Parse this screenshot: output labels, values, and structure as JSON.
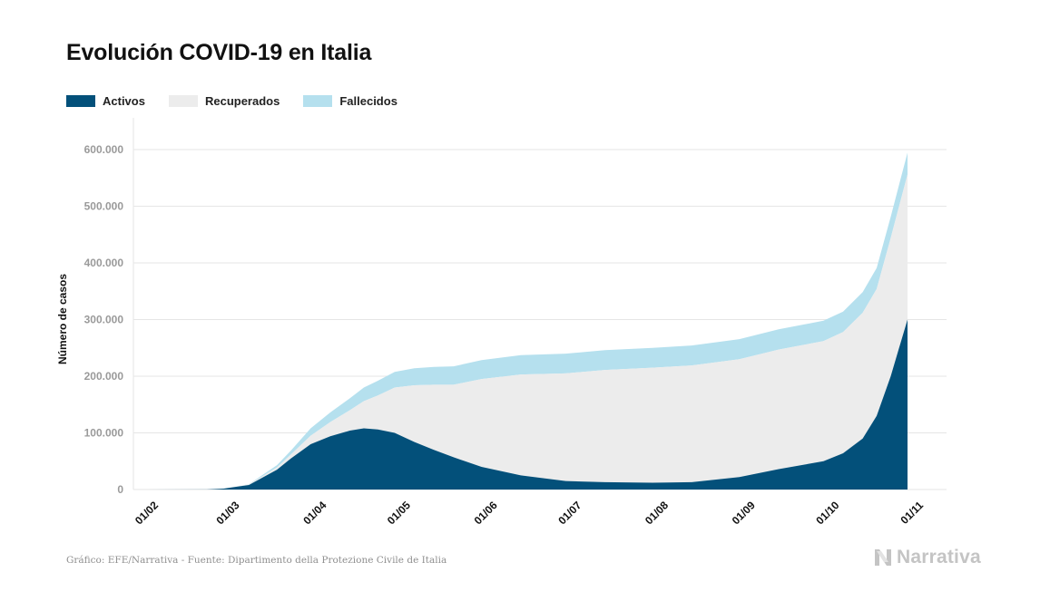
{
  "title": "Evolución COVID-19 en Italia",
  "legend": [
    {
      "label": "Activos",
      "color": "#03507a"
    },
    {
      "label": "Recuperados",
      "color": "#ececec"
    },
    {
      "label": "Fallecidos",
      "color": "#b5e0ee"
    }
  ],
  "source": "Gráfico: EFE/Narrativa - Fuente: Dipartimento della Protezione Civile de Italia",
  "brand": "Narrativa",
  "chart_data": {
    "type": "area",
    "stacked": true,
    "ylabel": "Número de casos",
    "ylim": [
      0,
      620000
    ],
    "yticks": [
      0,
      100000,
      200000,
      300000,
      400000,
      500000,
      600000
    ],
    "ytick_labels": [
      "0",
      "100.000",
      "200.000",
      "300.000",
      "400.000",
      "500.000",
      "600.000"
    ],
    "xtick_labels": [
      "01/02",
      "01/03",
      "01/04",
      "01/05",
      "01/06",
      "01/07",
      "01/08",
      "01/09",
      "01/10",
      "01/11"
    ],
    "x_start": "2020-02-01",
    "x_end": "2020-10-31",
    "grid": true,
    "legend_position": "top-left",
    "x": [
      "2020-02-01",
      "2020-02-24",
      "2020-03-01",
      "2020-03-10",
      "2020-03-20",
      "2020-03-25",
      "2020-04-01",
      "2020-04-08",
      "2020-04-15",
      "2020-04-20",
      "2020-04-25",
      "2020-05-01",
      "2020-05-08",
      "2020-05-15",
      "2020-05-22",
      "2020-06-01",
      "2020-06-15",
      "2020-07-01",
      "2020-07-15",
      "2020-08-01",
      "2020-08-15",
      "2020-09-01",
      "2020-09-15",
      "2020-10-01",
      "2020-10-08",
      "2020-10-15",
      "2020-10-20",
      "2020-10-25",
      "2020-10-28",
      "2020-10-31"
    ],
    "series": [
      {
        "name": "Activos",
        "color": "#03507a",
        "values": [
          0,
          200,
          1600,
          8000,
          35000,
          55000,
          80000,
          94000,
          104000,
          108000,
          106000,
          100000,
          84000,
          70000,
          57000,
          40000,
          25000,
          15000,
          13000,
          12000,
          13000,
          22000,
          36000,
          50000,
          64000,
          90000,
          130000,
          200000,
          250000,
          300000
        ]
      },
      {
        "name": "Recuperados",
        "color": "#ececec",
        "values": [
          0,
          0,
          100,
          900,
          4000,
          7000,
          15000,
          25000,
          36000,
          48000,
          60000,
          80000,
          100000,
          115000,
          128000,
          155000,
          178000,
          190000,
          198000,
          203000,
          206000,
          208000,
          211000,
          212000,
          214000,
          222000,
          224000,
          244000,
          250000,
          256000
        ]
      },
      {
        "name": "Fallecidos",
        "color": "#b5e0ee",
        "values": [
          0,
          0,
          30,
          600,
          4000,
          7000,
          13000,
          17000,
          21000,
          24000,
          26000,
          27500,
          30000,
          31500,
          32500,
          33400,
          34300,
          34800,
          35000,
          35150,
          35300,
          35500,
          35700,
          35900,
          36100,
          36500,
          37000,
          37500,
          38100,
          38600
        ]
      }
    ]
  }
}
